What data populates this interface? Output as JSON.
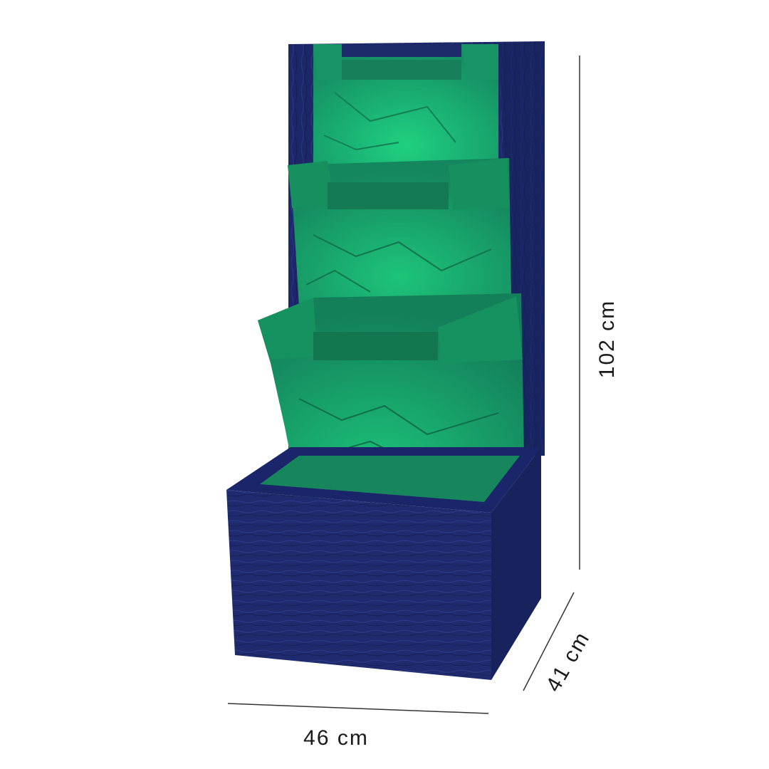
{
  "dimensions": {
    "height": "102 cm",
    "depth": "41 cm",
    "width": "46 cm"
  },
  "colors": {
    "fountain_body": "#1f2b6e",
    "fountain_dark": "#17225c",
    "fountain_glow": "#15a06a",
    "fountain_glow_bright": "#1fd081",
    "dimension_line": "#333333",
    "background": "#ffffff"
  },
  "product_image": "tiered-waterfall-fountain"
}
